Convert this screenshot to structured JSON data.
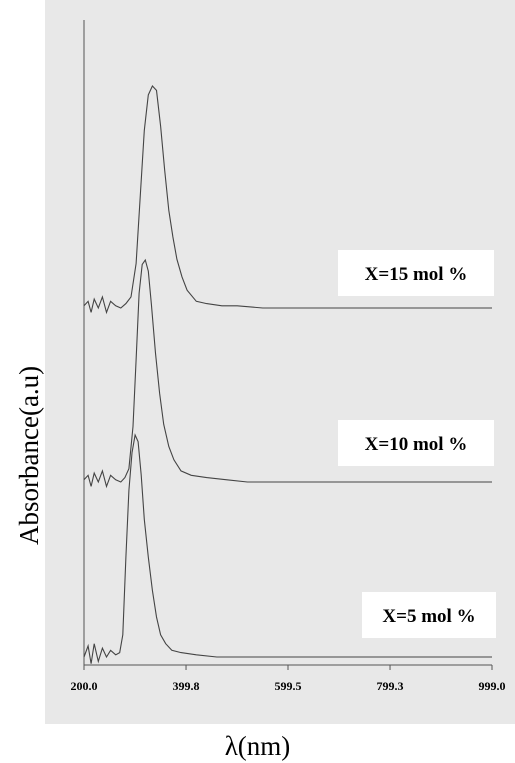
{
  "chart_data": {
    "type": "line",
    "xlabel": "λ(nm)",
    "ylabel": "Absorbance(a.u)",
    "x_ticks": [
      "200.0",
      "399.8",
      "599.5",
      "799.3",
      "999.0"
    ],
    "xlim": [
      200.0,
      999.0
    ],
    "grid": false,
    "colors": {
      "background": "#e8e8e8",
      "line": "#444444",
      "label_box": "#ffffff"
    },
    "series": [
      {
        "name": "X=15 mol %",
        "x": [
          200,
          208,
          214,
          220,
          228,
          236,
          244,
          252,
          262,
          272,
          282,
          292,
          302,
          310,
          318,
          326,
          334,
          342,
          350,
          358,
          366,
          374,
          382,
          392,
          402,
          420,
          440,
          470,
          500,
          550,
          600,
          700,
          800,
          900,
          999
        ],
        "y": [
          0.01,
          0.03,
          -0.02,
          0.04,
          0.0,
          0.05,
          -0.02,
          0.03,
          0.01,
          0.0,
          0.02,
          0.05,
          0.2,
          0.5,
          0.8,
          0.96,
          1.0,
          0.98,
          0.82,
          0.62,
          0.44,
          0.32,
          0.22,
          0.14,
          0.08,
          0.03,
          0.02,
          0.01,
          0.01,
          0.0,
          0.0,
          0.0,
          0.0,
          0.0,
          0.0
        ]
      },
      {
        "name": "X=10 mol %",
        "x": [
          200,
          208,
          214,
          220,
          228,
          236,
          244,
          252,
          262,
          272,
          280,
          288,
          296,
          302,
          308,
          314,
          320,
          326,
          332,
          340,
          348,
          356,
          366,
          376,
          390,
          410,
          440,
          480,
          520,
          600,
          700,
          800,
          900,
          999
        ],
        "y": [
          0.01,
          0.03,
          -0.02,
          0.04,
          0.0,
          0.05,
          -0.02,
          0.03,
          0.01,
          0.0,
          0.02,
          0.06,
          0.25,
          0.55,
          0.85,
          0.98,
          1.0,
          0.95,
          0.8,
          0.58,
          0.4,
          0.26,
          0.16,
          0.1,
          0.05,
          0.03,
          0.02,
          0.01,
          0.0,
          0.0,
          0.0,
          0.0,
          0.0,
          0.0
        ]
      },
      {
        "name": "X=5 mol %",
        "x": [
          200,
          208,
          214,
          220,
          228,
          236,
          244,
          252,
          262,
          270,
          276,
          282,
          288,
          294,
          300,
          306,
          312,
          318,
          326,
          334,
          342,
          350,
          360,
          372,
          390,
          420,
          460,
          520,
          600,
          700,
          800,
          900,
          999
        ],
        "y": [
          0.0,
          0.05,
          -0.03,
          0.06,
          -0.02,
          0.04,
          0.0,
          0.03,
          0.01,
          0.02,
          0.1,
          0.45,
          0.75,
          0.92,
          1.0,
          0.97,
          0.82,
          0.62,
          0.45,
          0.3,
          0.18,
          0.1,
          0.06,
          0.03,
          0.02,
          0.01,
          0.0,
          0.0,
          0.0,
          0.0,
          0.0,
          0.0,
          0.0
        ]
      }
    ]
  }
}
